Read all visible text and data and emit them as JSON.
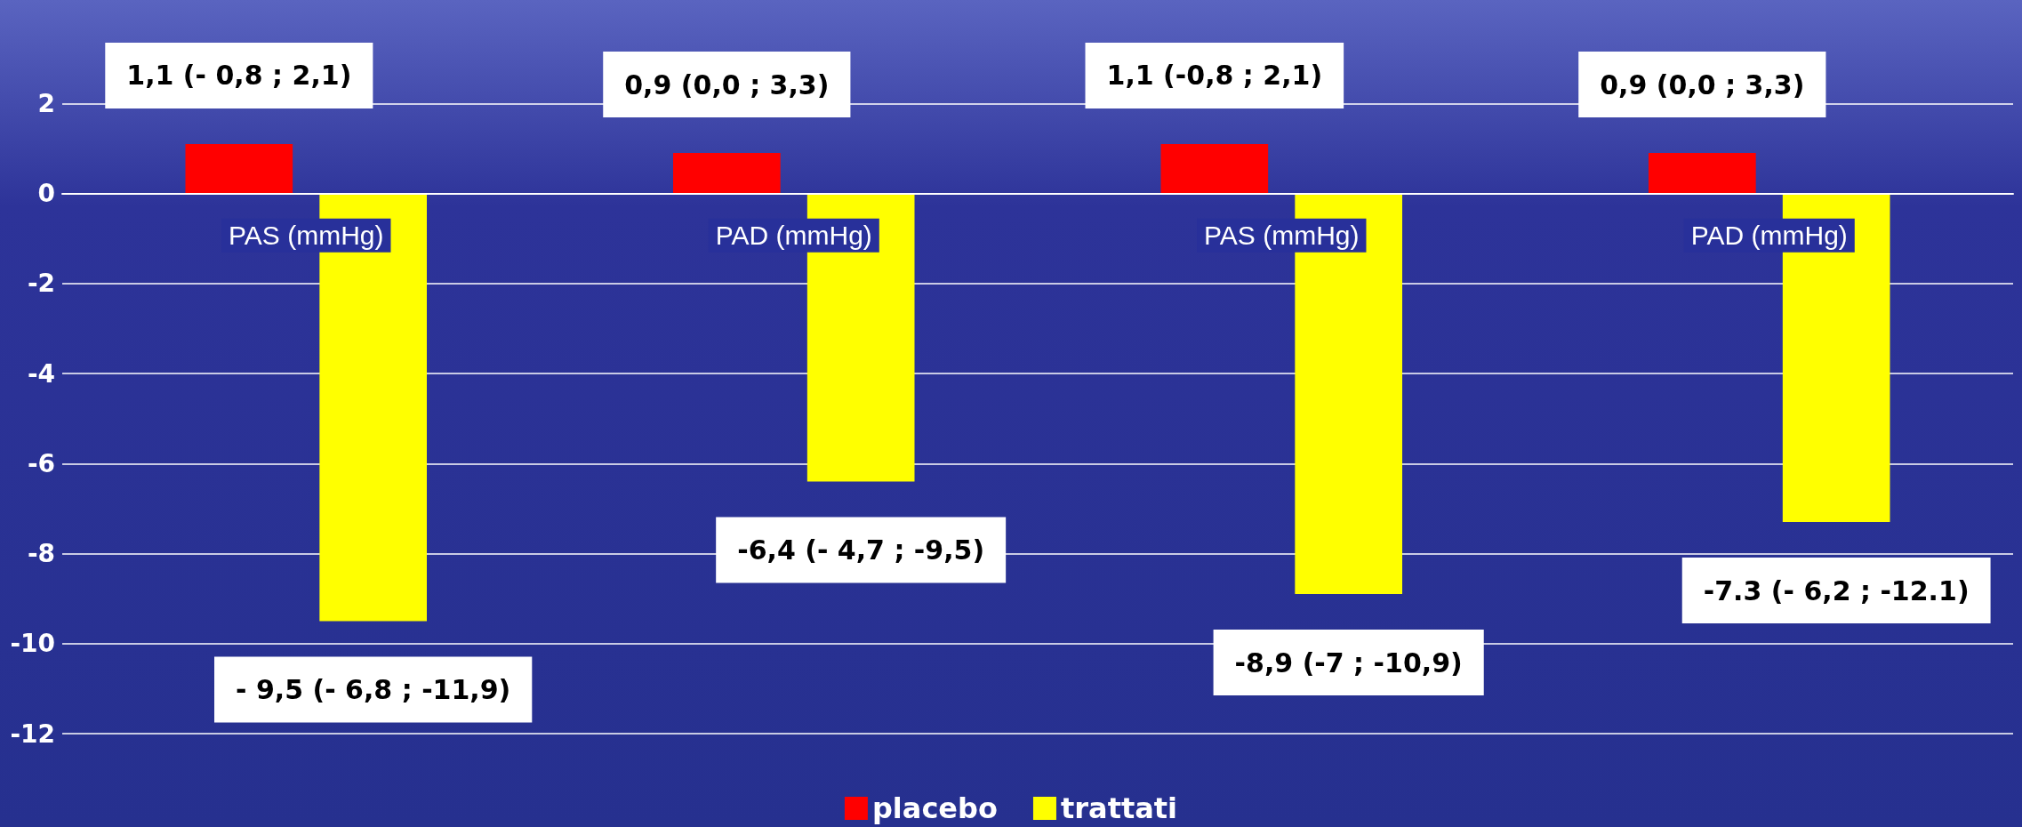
{
  "chart_data": {
    "type": "bar",
    "categories": [
      "PAS (mmHg)",
      "PAD (mmHg)",
      "PAS (mmHg)",
      "PAD (mmHg)"
    ],
    "series": [
      {
        "name": "placebo",
        "color": "#ff0000",
        "values": [
          1.1,
          0.9,
          1.1,
          0.9
        ],
        "value_labels": [
          "1,1 (- 0,8 ; 2,1)",
          "0,9 (0,0 ; 3,3)",
          "1,1 (-0,8 ; 2,1)",
          "0,9 (0,0 ; 3,3)"
        ]
      },
      {
        "name": "trattati",
        "color": "#ffff00",
        "values": [
          -9.5,
          -6.4,
          -8.9,
          -7.3
        ],
        "value_labels": [
          "- 9,5 (- 6,8 ; -11,9)",
          "-6,4 (- 4,7 ; -9,5)",
          "-8,9 (-7 ; -10,9)",
          "-7.3 (- 6,2 ; -12.1)"
        ]
      }
    ],
    "ylim": [
      -12,
      4.3
    ],
    "yticks": [
      -12,
      -10,
      -8,
      -6,
      -4,
      -2,
      0,
      2
    ],
    "grid": "y",
    "legend": "bottom"
  }
}
